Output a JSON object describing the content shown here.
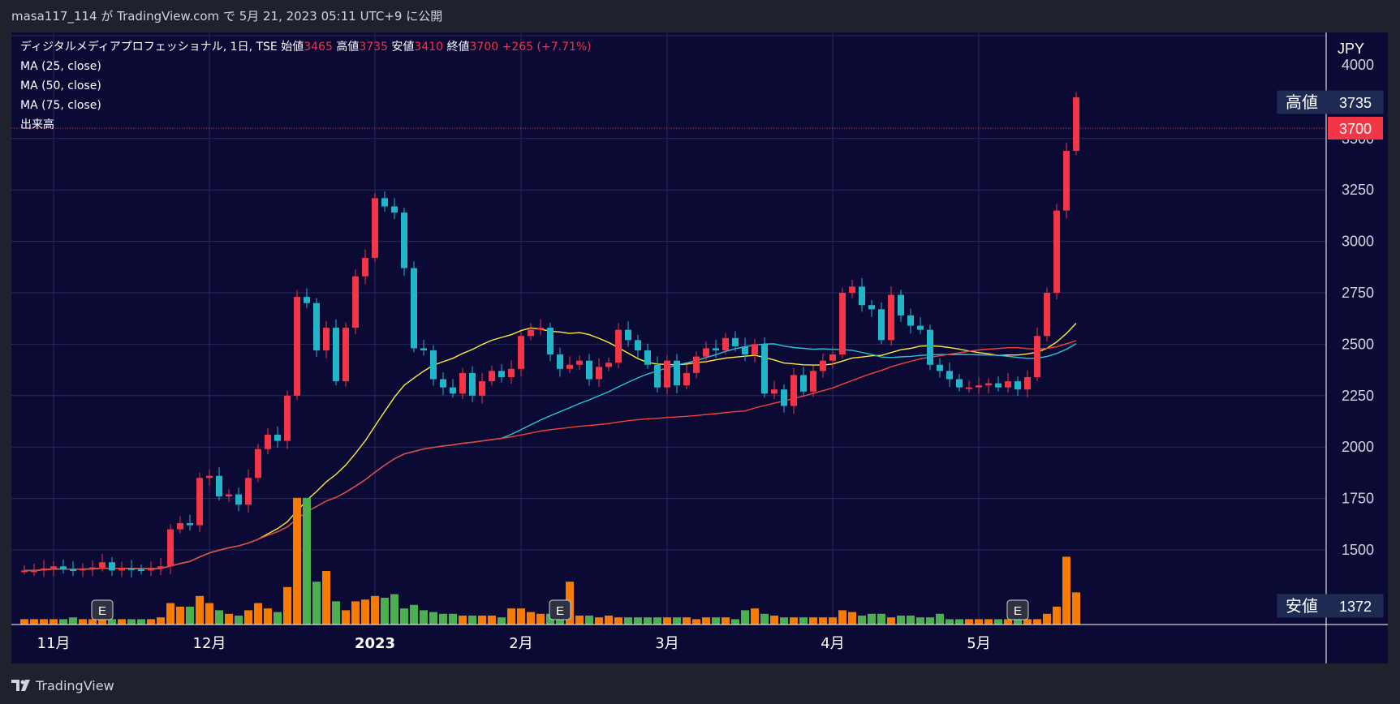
{
  "header": {
    "publish_text": "masa117_114 が TradingView.com で 5月 21, 2023 05:11 UTC+9 に公開"
  },
  "legend": {
    "symbol": "ディジタルメディアプロフェッショナル, 1日, TSE",
    "open_label": "始値",
    "open_value": "3465",
    "high_label": "高値",
    "high_value": "3735",
    "low_label": "安値",
    "low_value": "3410",
    "close_label": "終値",
    "close_value": "3700",
    "change": "+265 (+7.71%)",
    "ma_lines": [
      "MA (25, close)",
      "MA (50, close)",
      "MA (75, close)"
    ],
    "volume_label": "出来高"
  },
  "footer": {
    "brand": "TradingView"
  },
  "colors": {
    "up": "#f23645",
    "down": "#22b4c9",
    "vol_orange": "#f57c00",
    "vol_green": "#4caf50",
    "ma25": "#ffeb3b",
    "ma50": "#26c6da",
    "ma75": "#f44336",
    "bg": "#0b0a35"
  },
  "chart_data": {
    "type": "candlestick",
    "currency": "JPY",
    "y_ticks": [
      1500,
      1750,
      2000,
      2250,
      2500,
      2750,
      3000,
      3250,
      3500,
      4000
    ],
    "x_labels": [
      {
        "label": "11月",
        "index": 3
      },
      {
        "label": "12月",
        "index": 19
      },
      {
        "label": "2023",
        "index": 36
      },
      {
        "label": "2月",
        "index": 51
      },
      {
        "label": "3月",
        "index": 66
      },
      {
        "label": "4月",
        "index": 83
      },
      {
        "label": "5月",
        "index": 98
      }
    ],
    "earnings_markers": [
      {
        "label": "E",
        "index": 8
      },
      {
        "label": "E",
        "index": 55
      },
      {
        "label": "E",
        "index": 102
      }
    ],
    "price_tags": [
      {
        "label": "高値",
        "value": "3735",
        "kind": "high"
      },
      {
        "label": "",
        "value": "3700",
        "kind": "last"
      },
      {
        "label": "安値",
        "value": "1372",
        "kind": "low"
      }
    ],
    "close": [
      1400,
      1400,
      1410,
      1420,
      1405,
      1400,
      1410,
      1415,
      1440,
      1400,
      1410,
      1405,
      1400,
      1410,
      1420,
      1600,
      1630,
      1620,
      1850,
      1860,
      1760,
      1770,
      1720,
      1850,
      1990,
      2060,
      2030,
      2250,
      2730,
      2700,
      2470,
      2580,
      2320,
      2580,
      2830,
      2920,
      3210,
      3170,
      3140,
      2870,
      2480,
      2470,
      2330,
      2290,
      2260,
      2360,
      2250,
      2320,
      2370,
      2340,
      2380,
      2540,
      2570,
      2580,
      2450,
      2380,
      2400,
      2420,
      2330,
      2390,
      2410,
      2570,
      2520,
      2470,
      2400,
      2290,
      2420,
      2300,
      2360,
      2440,
      2480,
      2470,
      2530,
      2490,
      2450,
      2500,
      2260,
      2280,
      2200,
      2350,
      2270,
      2370,
      2420,
      2450,
      2750,
      2780,
      2690,
      2670,
      2520,
      2740,
      2640,
      2590,
      2570,
      2400,
      2370,
      2330,
      2290,
      2290,
      2300,
      2310,
      2290,
      2320,
      2280,
      2340,
      2540,
      2750,
      3150,
      3440,
      3700
    ],
    "volume_relative": [
      0.3,
      0.3,
      0.3,
      0.3,
      0.3,
      0.4,
      0.3,
      0.3,
      0.6,
      0.3,
      0.3,
      0.3,
      0.3,
      0.3,
      0.4,
      1.2,
      1.0,
      1.0,
      1.6,
      1.2,
      0.8,
      0.6,
      0.5,
      0.8,
      1.2,
      0.9,
      0.7,
      2.1,
      7.1,
      7.1,
      2.4,
      3.0,
      1.3,
      0.8,
      1.3,
      1.4,
      1.6,
      1.5,
      1.7,
      0.9,
      1.1,
      0.8,
      0.7,
      0.6,
      0.6,
      0.5,
      0.5,
      0.5,
      0.5,
      0.4,
      0.9,
      0.9,
      0.7,
      0.6,
      0.6,
      0.5,
      2.4,
      0.5,
      0.5,
      0.4,
      0.5,
      0.4,
      0.4,
      0.4,
      0.4,
      0.4,
      0.4,
      0.4,
      0.4,
      0.3,
      0.4,
      0.4,
      0.4,
      0.3,
      0.8,
      0.9,
      0.6,
      0.5,
      0.4,
      0.4,
      0.4,
      0.4,
      0.4,
      0.4,
      0.8,
      0.7,
      0.5,
      0.6,
      0.6,
      0.4,
      0.5,
      0.5,
      0.4,
      0.4,
      0.6,
      0.3,
      0.3,
      0.3,
      0.3,
      0.3,
      0.3,
      0.3,
      0.3,
      0.3,
      0.3,
      0.6,
      1.0,
      3.8,
      1.8
    ]
  }
}
